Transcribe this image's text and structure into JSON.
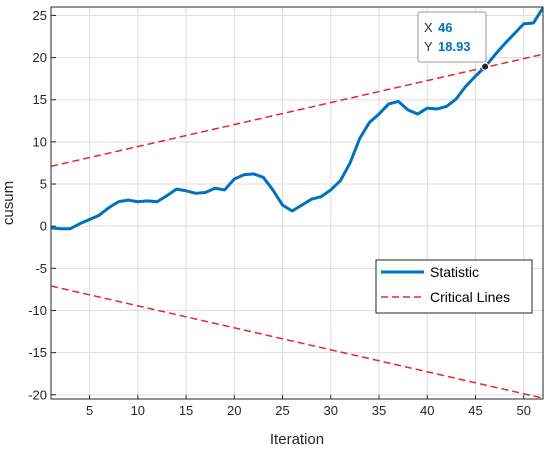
{
  "chart_data": {
    "type": "line",
    "xlabel": "Iteration",
    "ylabel": "cusum",
    "xlim": [
      1,
      52
    ],
    "ylim": [
      -20.5,
      26
    ],
    "xticks": [
      5,
      10,
      15,
      20,
      25,
      30,
      35,
      40,
      45,
      50
    ],
    "yticks": [
      -20,
      -15,
      -10,
      -5,
      0,
      5,
      10,
      15,
      20,
      25
    ],
    "grid": true,
    "legend_position": "lower-right",
    "series": [
      {
        "name": "Statistic",
        "style": "solid",
        "color": "#0072bd",
        "x": [
          1,
          2,
          3,
          4,
          5,
          6,
          7,
          8,
          9,
          10,
          11,
          12,
          13,
          14,
          15,
          16,
          17,
          18,
          19,
          20,
          21,
          22,
          23,
          24,
          25,
          26,
          27,
          28,
          29,
          30,
          31,
          32,
          33,
          34,
          35,
          36,
          37,
          38,
          39,
          40,
          41,
          42,
          43,
          44,
          45,
          46,
          47,
          48,
          49,
          50,
          51,
          52
        ],
        "y": [
          -0.2,
          -0.3,
          -0.3,
          0.3,
          0.8,
          1.3,
          2.2,
          2.9,
          3.1,
          2.9,
          3.0,
          2.9,
          3.6,
          4.4,
          4.2,
          3.9,
          4.0,
          4.5,
          4.3,
          5.6,
          6.1,
          6.2,
          5.8,
          4.3,
          2.5,
          1.8,
          2.5,
          3.2,
          3.5,
          4.3,
          5.4,
          7.5,
          10.4,
          12.3,
          13.3,
          14.5,
          14.8,
          13.8,
          13.3,
          14.0,
          13.9,
          14.2,
          15.1,
          16.6,
          17.8,
          18.9,
          20.3,
          21.6,
          22.8,
          24.0,
          24.1,
          25.9
        ]
      },
      {
        "name": "Critical Lines",
        "style": "dashed",
        "color": "#e8262b",
        "x": [
          1,
          52
        ],
        "y": [
          7.1,
          20.4
        ]
      },
      {
        "name": "",
        "style": "dashed",
        "color": "#e8262b",
        "x": [
          1,
          52
        ],
        "y": [
          -7.1,
          -20.4
        ]
      }
    ],
    "datatip": {
      "x_label": "X",
      "x_value": "46",
      "y_label": "Y",
      "y_value": "18.93",
      "x": 46,
      "y": 18.93
    }
  }
}
